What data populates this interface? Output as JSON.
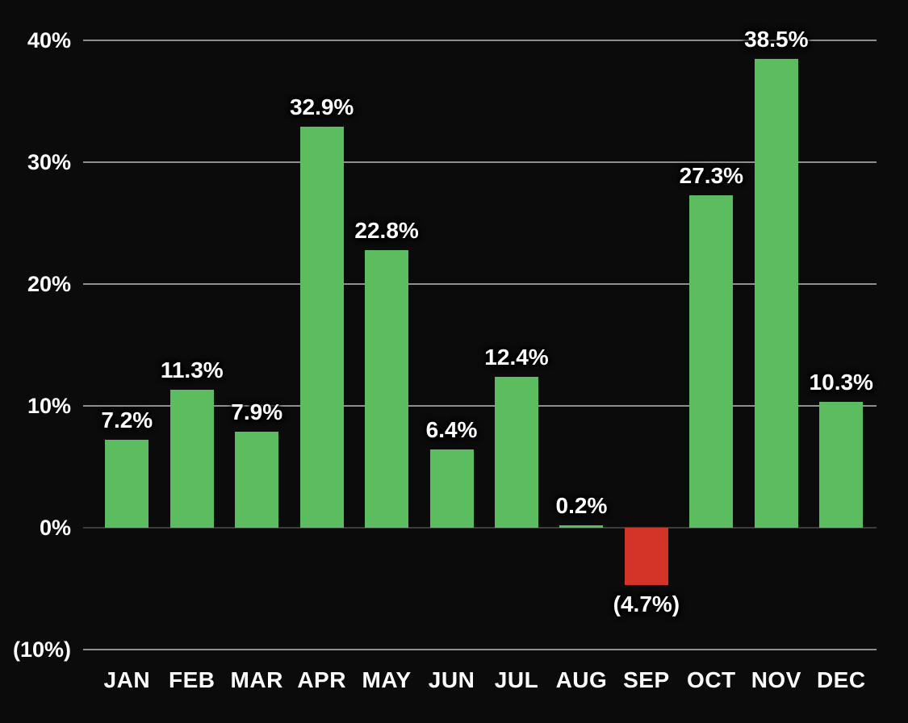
{
  "chart_data": {
    "type": "bar",
    "title": "",
    "xlabel": "",
    "ylabel": "",
    "categories": [
      "JAN",
      "FEB",
      "MAR",
      "APR",
      "MAY",
      "JUN",
      "JUL",
      "AUG",
      "SEP",
      "OCT",
      "NOV",
      "DEC"
    ],
    "values": [
      7.2,
      11.3,
      7.9,
      32.9,
      22.8,
      6.4,
      12.4,
      0.2,
      -4.7,
      27.3,
      38.5,
      10.3
    ],
    "value_labels": [
      "7.2%",
      "11.3%",
      "7.9%",
      "32.9%",
      "22.8%",
      "6.4%",
      "12.4%",
      "0.2%",
      "(4.7%)",
      "27.3%",
      "38.5%",
      "10.3%"
    ],
    "y_ticks": [
      {
        "value": 40,
        "label": "40%"
      },
      {
        "value": 30,
        "label": "30%"
      },
      {
        "value": 20,
        "label": "20%"
      },
      {
        "value": 10,
        "label": "10%"
      },
      {
        "value": 0,
        "label": "0%"
      },
      {
        "value": -10,
        "label": "(10%)"
      }
    ],
    "ylim": [
      -10,
      45
    ],
    "grid": true,
    "legend": false,
    "colors": {
      "positive_bar": "#5cbc60",
      "negative_bar": "#d43327",
      "background": "#0b0b0b",
      "text": "#ffffff",
      "gridline": "#8f8f8f",
      "zero_line": "#3c3c3c"
    }
  }
}
